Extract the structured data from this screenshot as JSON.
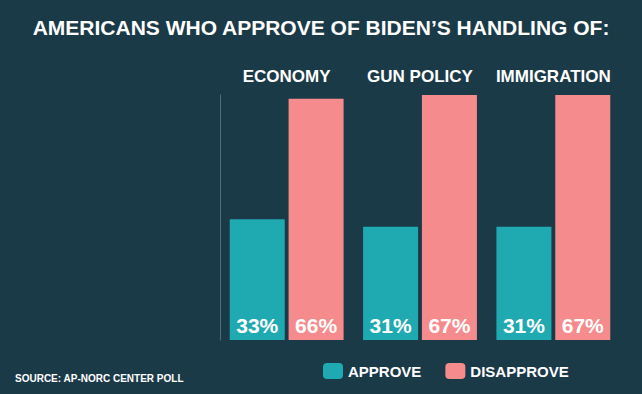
{
  "chart_data": {
    "type": "bar",
    "title": "AMERICANS WHO APPROVE OF BIDEN’S HANDLING OF:",
    "source": "SOURCE: AP-NORC CENTER POLL",
    "categories": [
      "ECONOMY",
      "GUN POLICY",
      "IMMIGRATION"
    ],
    "series": [
      {
        "name": "APPROVE",
        "color": "#1fa9b1",
        "values": [
          33,
          31,
          31
        ],
        "value_labels": [
          "33%",
          "31%",
          "31%"
        ]
      },
      {
        "name": "DISAPPROVE",
        "color": "#f58b8c",
        "values": [
          66,
          67,
          67
        ],
        "value_labels": [
          "66%",
          "67%",
          "67%"
        ]
      }
    ],
    "ylim": [
      0,
      67
    ],
    "yticks": [],
    "tick_labels": "x",
    "data_labels": true,
    "legend": "bottom",
    "grid": false
  }
}
